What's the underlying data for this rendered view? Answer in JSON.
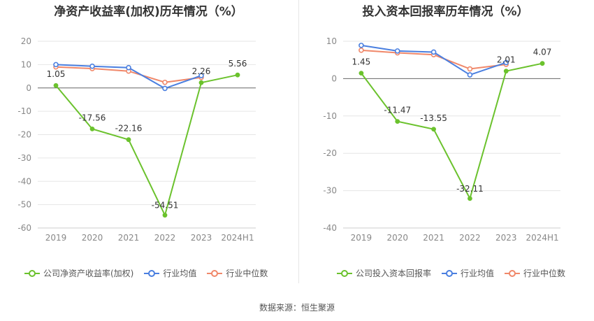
{
  "source_text": "数据来源：恒生聚源",
  "colors": {
    "company": "#6bc22d",
    "industry_avg": "#4a7fe0",
    "industry_median": "#f0886a",
    "grid": "#e6e6e6",
    "axis": "#666666",
    "tick": "#888888"
  },
  "chart_data": [
    {
      "type": "line",
      "title": "净资产收益率(加权)历年情况（%）",
      "categories": [
        "2019",
        "2020",
        "2021",
        "2022",
        "2023",
        "2024H1"
      ],
      "ylim": [
        -60,
        20
      ],
      "yticks": [
        20,
        10,
        0,
        -10,
        -20,
        -30,
        -40,
        -50,
        -60
      ],
      "grid": true,
      "legend": "bottom",
      "series": [
        {
          "name": "公司净资产收益率(加权)",
          "values": [
            1.05,
            -17.56,
            -22.16,
            -54.51,
            2.26,
            5.56
          ],
          "labels": [
            "1.05",
            "-17.56",
            "-22.16",
            "-54.51",
            "2.26",
            "5.56"
          ]
        },
        {
          "name": "行业均值",
          "values": [
            10,
            9.3,
            8.7,
            -0.2,
            5.3,
            null
          ]
        },
        {
          "name": "行业中位数",
          "values": [
            9,
            8.3,
            7.2,
            2.4,
            4.5,
            null
          ]
        }
      ]
    },
    {
      "type": "line",
      "title": "投入资本回报率历年情况（%）",
      "categories": [
        "2019",
        "2020",
        "2021",
        "2022",
        "2023",
        "2024H1"
      ],
      "ylim": [
        -40,
        10
      ],
      "yticks": [
        10,
        0,
        -10,
        -20,
        -30,
        -40
      ],
      "grid": true,
      "legend": "bottom",
      "series": [
        {
          "name": "公司投入资本回报率",
          "values": [
            1.45,
            -11.47,
            -13.55,
            -32.11,
            2.01,
            4.07
          ],
          "labels": [
            "1.45",
            "-11.47",
            "-13.55",
            "-32.11",
            "2.01",
            "4.07"
          ]
        },
        {
          "name": "行业均值",
          "values": [
            8.9,
            7.4,
            7.1,
            1.0,
            4.3,
            null
          ]
        },
        {
          "name": "行业中位数",
          "values": [
            7.6,
            6.9,
            6.4,
            2.6,
            3.8,
            null
          ]
        }
      ]
    }
  ]
}
